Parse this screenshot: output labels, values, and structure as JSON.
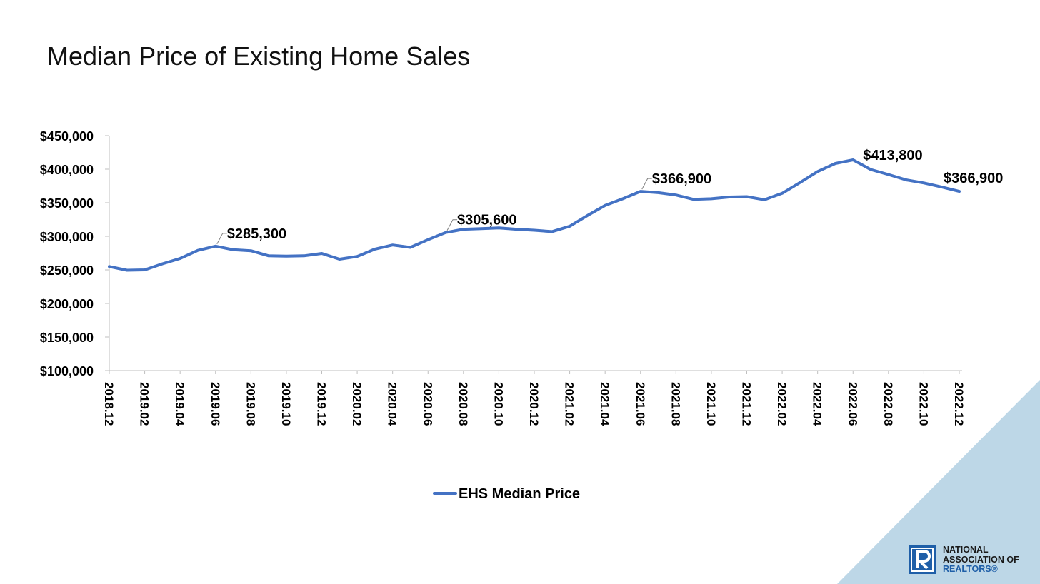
{
  "colors": {
    "line": "#4472c4",
    "corner": "#bdd7e7",
    "logo_blue": "#1f5fa8"
  },
  "logo": {
    "line1": "NATIONAL",
    "line2": "ASSOCIATION OF",
    "line3": "REALTORS®"
  },
  "chart_data": {
    "type": "line",
    "title": "Median Price of Existing Home Sales",
    "xlabel": "",
    "ylabel": "",
    "ylim": [
      100000,
      450000
    ],
    "yticks": [
      100000,
      150000,
      200000,
      250000,
      300000,
      350000,
      400000,
      450000
    ],
    "ytick_labels": [
      "$100,000",
      "$150,000",
      "$200,000",
      "$250,000",
      "$300,000",
      "$350,000",
      "$400,000",
      "$450,000"
    ],
    "x": [
      "2018.12",
      "2019.01",
      "2019.02",
      "2019.03",
      "2019.04",
      "2019.05",
      "2019.06",
      "2019.07",
      "2019.08",
      "2019.09",
      "2019.10",
      "2019.11",
      "2019.12",
      "2020.01",
      "2020.02",
      "2020.03",
      "2020.04",
      "2020.05",
      "2020.06",
      "2020.07",
      "2020.08",
      "2020.09",
      "2020.10",
      "2020.11",
      "2020.12",
      "2021.01",
      "2021.02",
      "2021.03",
      "2021.04",
      "2021.05",
      "2021.06",
      "2021.07",
      "2021.08",
      "2021.09",
      "2021.10",
      "2021.11",
      "2021.12",
      "2022.01",
      "2022.02",
      "2022.03",
      "2022.04",
      "2022.05",
      "2022.06",
      "2022.07",
      "2022.08",
      "2022.09",
      "2022.10",
      "2022.11",
      "2022.12"
    ],
    "xtick_labels": [
      "2018.12",
      "2019.02",
      "2019.04",
      "2019.06",
      "2019.08",
      "2019.10",
      "2019.12",
      "2020.02",
      "2020.04",
      "2020.06",
      "2020.08",
      "2020.10",
      "2020.12",
      "2021.02",
      "2021.04",
      "2021.06",
      "2021.08",
      "2021.10",
      "2021.12",
      "2022.02",
      "2022.04",
      "2022.06",
      "2022.08",
      "2022.10",
      "2022.12"
    ],
    "series": [
      {
        "name": "EHS Median Price",
        "values": [
          255000,
          249500,
          250000,
          259000,
          267000,
          279000,
          285300,
          280000,
          278500,
          271000,
          270500,
          271000,
          274500,
          266000,
          270000,
          281000,
          287000,
          283500,
          295000,
          305600,
          310500,
          311500,
          312500,
          310500,
          309000,
          307000,
          315000,
          331000,
          346000,
          356000,
          366900,
          365000,
          361500,
          355000,
          356000,
          358500,
          359000,
          354500,
          364000,
          380000,
          396500,
          408500,
          413800,
          399500,
          392000,
          384000,
          379500,
          373500,
          366900
        ]
      }
    ],
    "data_labels": [
      {
        "index": 6,
        "text": "$285,300"
      },
      {
        "index": 19,
        "text": "$305,600"
      },
      {
        "index": 30,
        "text": "$366,900"
      },
      {
        "index": 42,
        "text": "$413,800"
      },
      {
        "index": 48,
        "text": "$366,900"
      }
    ],
    "legend": {
      "position": "bottom",
      "entries": [
        "EHS Median Price"
      ]
    },
    "grid": false
  }
}
